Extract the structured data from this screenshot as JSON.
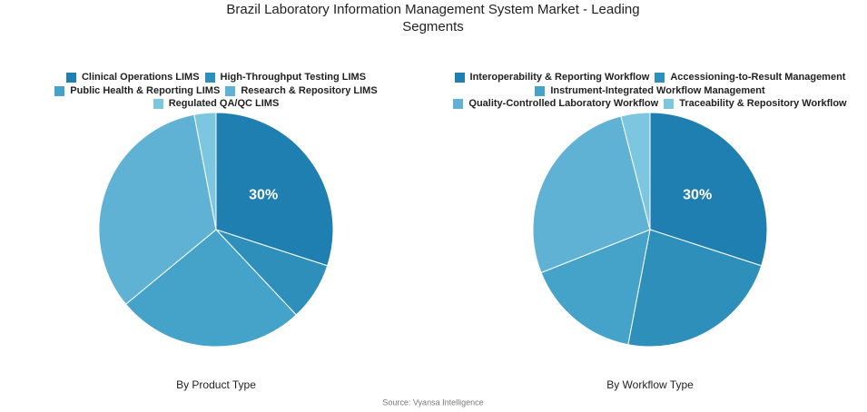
{
  "title": "Brazil Laboratory Information Management System Market - Leading Segments",
  "source": "Source: Vyansa Intelligence",
  "chart_data": [
    {
      "type": "pie",
      "subtitle": "By Product Type",
      "categories": [
        "Clinical Operations LIMS",
        "High-Throughput Testing LIMS",
        "Public Health & Reporting LIMS",
        "Research & Repository LIMS",
        "Regulated QA/QC LIMS"
      ],
      "values": [
        30,
        8,
        26,
        33,
        3
      ],
      "value_labels": [
        "30%",
        null,
        null,
        null,
        null
      ],
      "colors": [
        "#1f7fb0",
        "#2e8fbb",
        "#45a3c9",
        "#5fb2d3",
        "#7cc6df"
      ]
    },
    {
      "type": "pie",
      "subtitle": "By Workflow Type",
      "categories": [
        "Interoperability & Reporting Workflow",
        "Accessioning-to-Result Management",
        "Instrument-Integrated Workflow Management",
        "Quality-Controlled Laboratory Workflow",
        "Traceability & Repository Workflow"
      ],
      "values": [
        30,
        23,
        16,
        27,
        4
      ],
      "value_labels": [
        "30%",
        null,
        null,
        null,
        null
      ],
      "colors": [
        "#1f7fb0",
        "#2e8fbb",
        "#45a3c9",
        "#5fb2d3",
        "#7cc6df"
      ]
    }
  ]
}
